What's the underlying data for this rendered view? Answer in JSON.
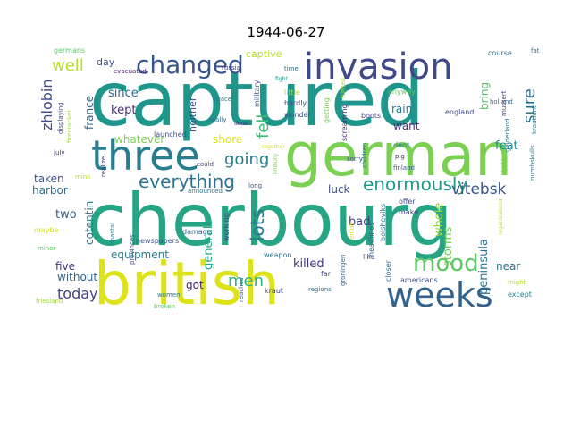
{
  "figure": {
    "title": "1944-06-27"
  },
  "wordcloud": {
    "words": [
      {
        "text": "captured",
        "color": "#1f968b"
      },
      {
        "text": "cherbourg",
        "color": "#25a584"
      },
      {
        "text": "british",
        "color": "#dde318"
      },
      {
        "text": "german",
        "color": "#7ad151"
      },
      {
        "text": "three",
        "color": "#287d8e"
      },
      {
        "text": "invasion",
        "color": "#3f4889"
      },
      {
        "text": "weeks",
        "color": "#33638d"
      },
      {
        "text": "changed",
        "color": "#39568c"
      },
      {
        "text": "mood",
        "color": "#5ec962"
      },
      {
        "text": "enormously",
        "color": "#1f9a8a"
      },
      {
        "text": "everything",
        "color": "#2c718e"
      },
      {
        "text": "vitebsk",
        "color": "#3b528b"
      },
      {
        "text": "going",
        "color": "#287c8e"
      },
      {
        "text": "lots",
        "color": "#2a788e"
      },
      {
        "text": "men",
        "color": "#2db27d"
      },
      {
        "text": "well",
        "color": "#b5de2b"
      },
      {
        "text": "sure",
        "color": "#2c728e"
      },
      {
        "text": "fell",
        "color": "#3bbb75"
      },
      {
        "text": "zhlobin",
        "color": "#3e4a89"
      },
      {
        "text": "today",
        "color": "#414487"
      },
      {
        "text": "killed",
        "color": "#46337e"
      },
      {
        "text": "generals",
        "color": "#22a884"
      },
      {
        "text": "peninsula",
        "color": "#2e6f8e"
      },
      {
        "text": "storms",
        "color": "#6ece58"
      },
      {
        "text": "whole",
        "color": "#95d840"
      },
      {
        "text": "kept",
        "color": "#472d7b"
      },
      {
        "text": "feat",
        "color": "#218f8d"
      },
      {
        "text": "bring",
        "color": "#52c569"
      },
      {
        "text": "want",
        "color": "#482878"
      },
      {
        "text": "rain",
        "color": "#2a778e"
      },
      {
        "text": "since",
        "color": "#31688e"
      },
      {
        "text": "luck",
        "color": "#3e4c8a"
      },
      {
        "text": "bad",
        "color": "#424086"
      },
      {
        "text": "two",
        "color": "#355f8d"
      },
      {
        "text": "got",
        "color": "#481a6c"
      },
      {
        "text": "near",
        "color": "#2c728e"
      },
      {
        "text": "five",
        "color": "#453781"
      },
      {
        "text": "without",
        "color": "#31668e"
      },
      {
        "text": "equipment",
        "color": "#277f8e"
      },
      {
        "text": "harbor",
        "color": "#2f6c8e"
      },
      {
        "text": "taken",
        "color": "#3b528b"
      },
      {
        "text": "cotentin",
        "color": "#2a788e"
      },
      {
        "text": "france",
        "color": "#34618d"
      },
      {
        "text": "whatever",
        "color": "#7ad151"
      },
      {
        "text": "shore",
        "color": "#dde318"
      },
      {
        "text": "neither",
        "color": "#3e4989"
      },
      {
        "text": "captive",
        "color": "#b8de29"
      },
      {
        "text": "day",
        "color": "#3b528b"
      },
      {
        "text": "germans",
        "color": "#5ec962"
      },
      {
        "text": "evacuated",
        "color": "#481f70"
      },
      {
        "text": "russia",
        "color": "#443983"
      },
      {
        "text": "course",
        "color": "#2c718e"
      },
      {
        "text": "fat",
        "color": "#2a788e"
      },
      {
        "text": "holland",
        "color": "#31688e"
      },
      {
        "text": "krautland",
        "color": "#287c8e"
      },
      {
        "text": "time",
        "color": "#2c728e"
      },
      {
        "text": "military",
        "color": "#3b528b"
      },
      {
        "text": "little",
        "color": "#a0da39"
      },
      {
        "text": "hardly",
        "color": "#3e4989"
      },
      {
        "text": "wonder",
        "color": "#3b528b"
      },
      {
        "text": "getting",
        "color": "#7ad151"
      },
      {
        "text": "turned",
        "color": "#b5de2b"
      },
      {
        "text": "screaming",
        "color": "#482475"
      },
      {
        "text": "boots",
        "color": "#414487"
      },
      {
        "text": "england",
        "color": "#3e4a89"
      },
      {
        "text": "anyway",
        "color": "#5ec962"
      },
      {
        "text": "dent",
        "color": "#2a788e"
      },
      {
        "text": "pig",
        "color": "#482878"
      },
      {
        "text": "sorry",
        "color": "#3e4c8a"
      },
      {
        "text": "children",
        "color": "#31688e"
      },
      {
        "text": "finland",
        "color": "#355f8d"
      },
      {
        "text": "shaking",
        "color": "#7ad151"
      },
      {
        "text": "gelderland",
        "color": "#2a788e"
      },
      {
        "text": "numbskulls",
        "color": "#2c718e"
      },
      {
        "text": "mussert",
        "color": "#443983"
      },
      {
        "text": "displaying",
        "color": "#3e4989"
      },
      {
        "text": "firecracker",
        "color": "#9fda3a"
      },
      {
        "text": "july",
        "color": "#472d7b"
      },
      {
        "text": "mink",
        "color": "#b5de2b"
      },
      {
        "text": "realize",
        "color": "#46327e"
      },
      {
        "text": "maybe",
        "color": "#d2e21b"
      },
      {
        "text": "minor",
        "color": "#5ec962"
      },
      {
        "text": "friesland",
        "color": "#a0da39"
      },
      {
        "text": "launched",
        "color": "#3b528b"
      },
      {
        "text": "really",
        "color": "#31688e"
      },
      {
        "text": "peace",
        "color": "#2a788e"
      },
      {
        "text": "could",
        "color": "#3e4a89"
      },
      {
        "text": "long",
        "color": "#3b528b"
      },
      {
        "text": "announced",
        "color": "#2c728e"
      },
      {
        "text": "together",
        "color": "#dde318"
      },
      {
        "text": "fight",
        "color": "#21918c"
      },
      {
        "text": "done",
        "color": "#46337e"
      },
      {
        "text": "newspapers",
        "color": "#3b528b"
      },
      {
        "text": "damage",
        "color": "#31688e"
      },
      {
        "text": "working",
        "color": "#414487"
      },
      {
        "text": "coastal",
        "color": "#287c8e"
      },
      {
        "text": "provinces",
        "color": "#3e4989"
      },
      {
        "text": "weapon",
        "color": "#2c718e"
      },
      {
        "text": "headlines",
        "color": "#33638d"
      },
      {
        "text": "bolsheviks",
        "color": "#2a788e"
      },
      {
        "text": "enlist",
        "color": "#dde318"
      },
      {
        "text": "offer",
        "color": "#3e4a89"
      },
      {
        "text": "make",
        "color": "#424086"
      },
      {
        "text": "like",
        "color": "#3b528b"
      },
      {
        "text": "closer",
        "color": "#2c728e"
      },
      {
        "text": "americans",
        "color": "#3b528b"
      },
      {
        "text": "except",
        "color": "#2a788e"
      },
      {
        "text": "might",
        "color": "#b5de2b"
      },
      {
        "text": "far",
        "color": "#3e4c8a"
      },
      {
        "text": "kraut",
        "color": "#414487"
      },
      {
        "text": "regions",
        "color": "#2c718e"
      },
      {
        "text": "groningen",
        "color": "#31688e"
      },
      {
        "text": "reaches",
        "color": "#3b528b"
      },
      {
        "text": "women",
        "color": "#2a788e"
      },
      {
        "text": "broken",
        "color": "#5ec962"
      },
      {
        "text": "limburg",
        "color": "#7ad151"
      },
      {
        "text": "organizations",
        "color": "#b5de2b"
      }
    ]
  }
}
